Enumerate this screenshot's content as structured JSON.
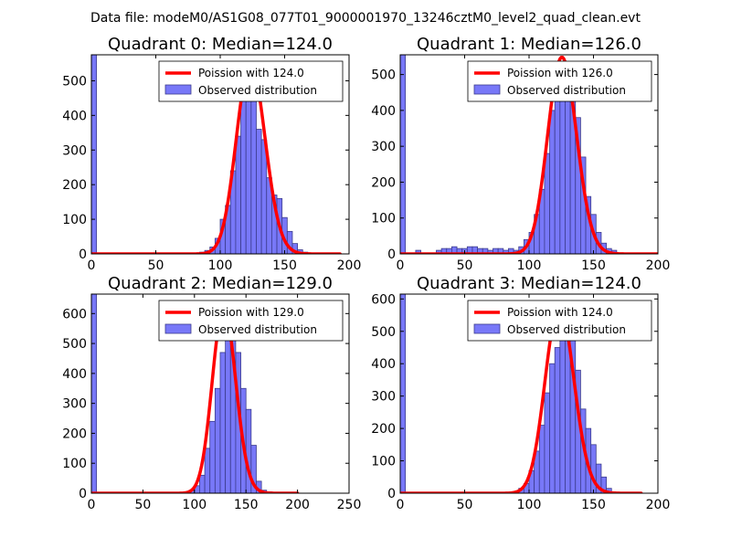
{
  "figure_title": "Data file: modeM0/AS1G08_077T01_9000001970_13246cztM0_level2_quad_clean.evt",
  "colors": {
    "hist_fill": "#7878f8",
    "hist_edge": "#3c3c8c",
    "curve": "#ff0000",
    "axis": "#000000"
  },
  "chart_data": [
    {
      "type": "bar",
      "title": "Quadrant 0: Median=124.0",
      "median": 124.0,
      "xlim": [
        0,
        200
      ],
      "ylim": [
        0,
        575
      ],
      "xticks": [
        0,
        50,
        100,
        150,
        200
      ],
      "yticks": [
        0,
        100,
        200,
        300,
        400,
        500
      ],
      "bin_width": 4,
      "legend": {
        "placement": "top-right",
        "curve_label": "Poission with 124.0",
        "hist_label": "Observed distribution"
      },
      "hist": {
        "bins": [
          0,
          84,
          88,
          92,
          96,
          100,
          104,
          108,
          112,
          116,
          120,
          124,
          128,
          132,
          136,
          140,
          144,
          148,
          152,
          156,
          160,
          164
        ],
        "values": [
          575,
          5,
          10,
          20,
          45,
          100,
          140,
          240,
          340,
          460,
          555,
          510,
          360,
          330,
          220,
          170,
          160,
          105,
          65,
          30,
          12,
          5
        ]
      },
      "curve": {
        "x_start": 0,
        "x_end": 193,
        "peak_at": 124,
        "peak_value": 552
      }
    },
    {
      "type": "bar",
      "title": "Quadrant 1: Median=126.0",
      "median": 126.0,
      "xlim": [
        0,
        200
      ],
      "ylim": [
        0,
        555
      ],
      "xticks": [
        0,
        50,
        100,
        150,
        200
      ],
      "yticks": [
        0,
        100,
        200,
        300,
        400,
        500
      ],
      "bin_width": 4,
      "legend": {
        "placement": "top-right",
        "curve_label": "Poission with 126.0",
        "hist_label": "Observed distribution"
      },
      "hist": {
        "bins": [
          0,
          12,
          28,
          32,
          36,
          40,
          44,
          48,
          52,
          56,
          60,
          64,
          68,
          72,
          76,
          80,
          84,
          88,
          92,
          96,
          100,
          104,
          108,
          112,
          116,
          120,
          124,
          128,
          132,
          136,
          140,
          144,
          148,
          152,
          156,
          160,
          164
        ],
        "values": [
          555,
          10,
          10,
          15,
          15,
          20,
          15,
          15,
          20,
          20,
          15,
          15,
          10,
          15,
          15,
          10,
          15,
          10,
          20,
          40,
          60,
          110,
          180,
          280,
          400,
          490,
          530,
          510,
          460,
          380,
          270,
          160,
          110,
          60,
          30,
          15,
          10
        ]
      },
      "curve": {
        "x_start": 0,
        "x_end": 200,
        "peak_at": 126,
        "peak_value": 548
      }
    },
    {
      "type": "bar",
      "title": "Quadrant 2: Median=129.0",
      "median": 129.0,
      "xlim": [
        0,
        250
      ],
      "ylim": [
        0,
        665
      ],
      "xticks": [
        0,
        50,
        100,
        150,
        200,
        250
      ],
      "yticks": [
        0,
        100,
        200,
        300,
        400,
        500,
        600
      ],
      "bin_width": 5,
      "legend": {
        "placement": "top-right",
        "curve_label": "Poission with 129.0",
        "hist_label": "Observed distribution"
      },
      "hist": {
        "bins": [
          0,
          95,
          100,
          105,
          110,
          115,
          120,
          125,
          130,
          135,
          140,
          145,
          150,
          155,
          160,
          165,
          170
        ],
        "values": [
          665,
          10,
          25,
          60,
          150,
          240,
          350,
          470,
          560,
          600,
          470,
          350,
          280,
          160,
          40,
          10,
          5
        ]
      },
      "curve": {
        "x_start": 0,
        "x_end": 200,
        "peak_at": 129,
        "peak_value": 620
      }
    },
    {
      "type": "bar",
      "title": "Quadrant 3: Median=124.0",
      "median": 124.0,
      "xlim": [
        0,
        200
      ],
      "ylim": [
        0,
        615
      ],
      "xticks": [
        0,
        50,
        100,
        150,
        200
      ],
      "yticks": [
        0,
        100,
        200,
        300,
        400,
        500,
        600
      ],
      "bin_width": 4,
      "legend": {
        "placement": "top-right",
        "curve_label": "Poission with 124.0",
        "hist_label": "Observed distribution"
      },
      "hist": {
        "bins": [
          0,
          88,
          92,
          96,
          100,
          104,
          108,
          112,
          116,
          120,
          124,
          128,
          132,
          136,
          140,
          144,
          148,
          152,
          156,
          160
        ],
        "values": [
          615,
          5,
          15,
          30,
          70,
          130,
          210,
          310,
          400,
          450,
          480,
          520,
          480,
          380,
          260,
          200,
          150,
          90,
          50,
          15
        ]
      },
      "curve": {
        "x_start": 0,
        "x_end": 187,
        "peak_at": 124,
        "peak_value": 580
      }
    }
  ]
}
